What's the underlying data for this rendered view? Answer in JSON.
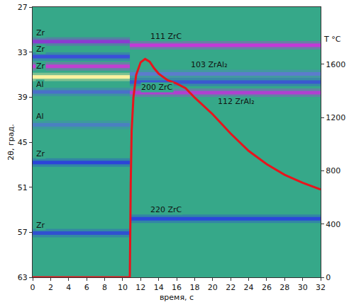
{
  "chart_data": {
    "type": "heatmap",
    "x_label": "время, с",
    "y_label": "2θ, град.",
    "y2_label": "T °C",
    "xlim": [
      0,
      32
    ],
    "xticks": [
      0,
      2,
      4,
      6,
      8,
      10,
      12,
      14,
      16,
      18,
      20,
      22,
      24,
      26,
      28,
      30,
      32
    ],
    "ylim": [
      63,
      27
    ],
    "yticks": [
      27,
      33,
      39,
      45,
      51,
      57,
      63
    ],
    "y2lim": [
      0,
      2030
    ],
    "y2ticks": [
      0,
      400,
      800,
      1200,
      1600
    ],
    "grid": false,
    "bands": [
      {
        "two_theta": 31.6,
        "time": [
          0,
          10.8
        ],
        "color": "#8a3cd0"
      },
      {
        "two_theta": 33.6,
        "time": [
          0,
          10.8
        ],
        "color": "#3a4fd8"
      },
      {
        "two_theta": 34.9,
        "time": [
          0,
          10.8
        ],
        "color": "#c040d0"
      },
      {
        "two_theta": 36.3,
        "time": [
          0,
          10.8
        ],
        "color": "#fff2a0"
      },
      {
        "two_theta": 38.3,
        "time": [
          0,
          10.8
        ],
        "color": "#4a70c8"
      },
      {
        "two_theta": 42.7,
        "time": [
          0,
          10.8
        ],
        "color": "#4a80c0"
      },
      {
        "two_theta": 47.7,
        "time": [
          0,
          10.8
        ],
        "color": "#2c44d8"
      },
      {
        "two_theta": 57.1,
        "time": [
          0,
          10.8
        ],
        "color": "#3050d0"
      },
      {
        "two_theta": 32.1,
        "time": [
          10.8,
          32
        ],
        "color": "#c23ad6"
      },
      {
        "two_theta": 35.9,
        "time": [
          10.8,
          32
        ],
        "color": "#5c7ccc"
      },
      {
        "two_theta": 37.0,
        "time": [
          10.8,
          32
        ],
        "color": "#3a58d0"
      },
      {
        "two_theta": 38.4,
        "time": [
          10.8,
          32
        ],
        "color": "#b040d0"
      },
      {
        "two_theta": 55.2,
        "time": [
          10.8,
          32
        ],
        "color": "#2a48d8"
      }
    ],
    "labels": [
      {
        "text": "Zr",
        "x": 0.3,
        "y": 30.4
      },
      {
        "text": "Zr",
        "x": 0.3,
        "y": 32.6
      },
      {
        "text": "Zr",
        "x": 0.3,
        "y": 34.9
      },
      {
        "text": "Al",
        "x": 0.3,
        "y": 37.3
      },
      {
        "text": "Al",
        "x": 0.3,
        "y": 41.6
      },
      {
        "text": "Zr",
        "x": 0.3,
        "y": 46.6
      },
      {
        "text": "Zr",
        "x": 0.3,
        "y": 56.1
      },
      {
        "text": "111 ZrC",
        "x": 13,
        "y": 30.9
      },
      {
        "text": "103 ZrAl₂",
        "x": 17.5,
        "y": 34.7
      },
      {
        "text": "200 ZrC",
        "x": 12,
        "y": 37.7
      },
      {
        "text": "112 ZrAl₂",
        "x": 20.5,
        "y": 39.6
      },
      {
        "text": "220 ZrC",
        "x": 13,
        "y": 54.0
      }
    ],
    "series": [
      {
        "axis": "y2",
        "color": "#e8141c",
        "x": [
          0,
          10.5,
          10.8,
          10.9,
          11.0,
          11.2,
          11.5,
          12,
          12.5,
          13,
          13.5,
          14,
          15,
          16,
          17,
          18,
          19,
          20,
          22,
          24,
          26,
          28,
          30,
          32
        ],
        "values": [
          0,
          0,
          0,
          700,
          1100,
          1350,
          1520,
          1615,
          1640,
          1620,
          1570,
          1530,
          1480,
          1455,
          1420,
          1350,
          1285,
          1225,
          1080,
          950,
          850,
          770,
          710,
          660
        ]
      }
    ]
  }
}
